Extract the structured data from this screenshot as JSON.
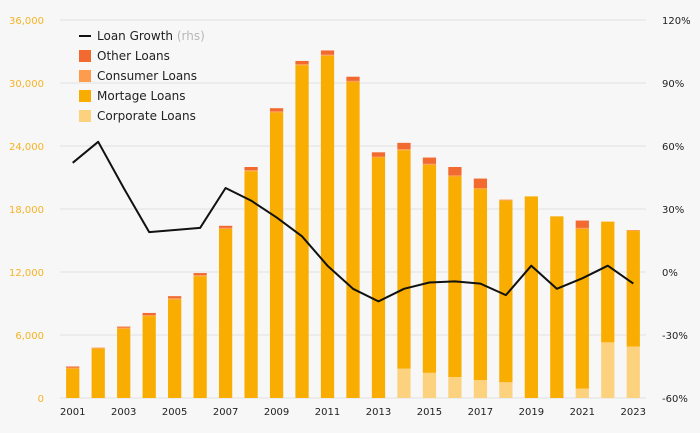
{
  "chart_data": {
    "type": "bar",
    "x": [
      2001,
      2002,
      2003,
      2004,
      2005,
      2006,
      2007,
      2008,
      2009,
      2010,
      2011,
      2012,
      2013,
      2014,
      2015,
      2016,
      2017,
      2018,
      2019,
      2020,
      2021,
      2022,
      2023
    ],
    "x_tick_labels": [
      "2001",
      "2003",
      "2005",
      "2007",
      "2009",
      "2011",
      "2013",
      "2015",
      "2017",
      "2019",
      "2021",
      "2023"
    ],
    "left_axis": {
      "ylim": [
        0,
        36000
      ],
      "tick_labels": [
        "0",
        "6,000",
        "12,000",
        "18,000",
        "24,000",
        "30,000",
        "36,000"
      ]
    },
    "right_axis": {
      "ylim": [
        -60,
        120
      ],
      "tick_labels": [
        "-60%",
        "-30%",
        "0%",
        "30%",
        "60%",
        "90%",
        "120%"
      ]
    },
    "series": [
      {
        "name": "Corporate Loans",
        "type": "bar",
        "color": "#fcd27f",
        "values": [
          0,
          0,
          0,
          0,
          0,
          0,
          0,
          0,
          0,
          0,
          0,
          0,
          0,
          2800,
          2400,
          2000,
          1700,
          1500,
          0,
          0,
          900,
          5300,
          4900
        ]
      },
      {
        "name": "Mortage Loans",
        "type": "bar",
        "color": "#f8ad00",
        "values": [
          2800,
          4700,
          6600,
          7800,
          9400,
          11600,
          16100,
          21600,
          27200,
          31700,
          32600,
          30100,
          22900,
          20800,
          19800,
          19100,
          18200,
          17300,
          19200,
          17300,
          15200,
          11500,
          11000
        ]
      },
      {
        "name": "Consumer Loans",
        "type": "bar",
        "color": "#fc9c4c",
        "values": [
          100,
          100,
          100,
          100,
          100,
          100,
          100,
          100,
          100,
          100,
          100,
          100,
          100,
          100,
          100,
          100,
          100,
          100,
          0,
          0,
          100,
          0,
          100
        ]
      },
      {
        "name": "Other Loans",
        "type": "bar",
        "color": "#f26a30",
        "values": [
          100,
          0,
          100,
          200,
          200,
          200,
          200,
          300,
          300,
          300,
          400,
          400,
          400,
          600,
          600,
          800,
          900,
          0,
          0,
          0,
          700,
          0,
          0
        ]
      },
      {
        "name": "Loan Growth",
        "name_suffix": "(rhs)",
        "type": "line",
        "axis": "right",
        "color": "#111111",
        "values": [
          52,
          62,
          40,
          19,
          20,
          21,
          40,
          34,
          26,
          17,
          3,
          -8,
          -14,
          -8,
          -5,
          -4.5,
          -5.5,
          -11,
          3,
          -8,
          -3,
          3,
          -5.5
        ]
      }
    ],
    "legend_position": "top-left",
    "grid": true
  }
}
